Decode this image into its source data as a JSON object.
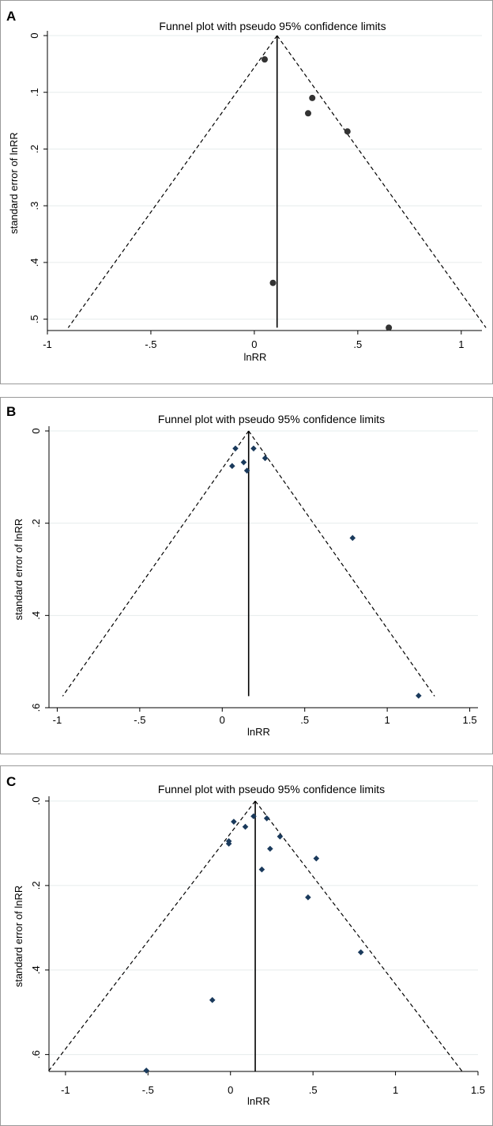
{
  "colors": {
    "panel_bg_a": "#ffffff",
    "panel_bg_bc": "#e9f2f2",
    "gridline": "#e6ecec",
    "circle_marker": "#333333",
    "diamond_marker": "#1a3a5c"
  },
  "chart_data": [
    {
      "type": "scatter",
      "panel_label": "A",
      "title": "Funnel plot with pseudo 95% confidence limits",
      "xlabel": "lnRR",
      "ylabel": "standard error of lnRR",
      "xlim": [
        -1,
        1.1
      ],
      "ylim": [
        0,
        0.52
      ],
      "y_reversed": true,
      "x_ticks": [
        -1,
        -0.5,
        0,
        0.5,
        1
      ],
      "x_tick_labels": [
        "-1",
        "-.5",
        "0",
        ".5",
        "1"
      ],
      "y_ticks": [
        0,
        0.1,
        0.2,
        0.3,
        0.4,
        0.5
      ],
      "y_tick_labels": [
        "0",
        ".1",
        ".2",
        ".3",
        ".4",
        ".5"
      ],
      "marker": "circle",
      "pooled_estimate": 0.11,
      "funnel_max_se": 0.515,
      "points": [
        {
          "x": 0.05,
          "se": 0.042
        },
        {
          "x": 0.28,
          "se": 0.11
        },
        {
          "x": 0.26,
          "se": 0.137
        },
        {
          "x": 0.45,
          "se": 0.169
        },
        {
          "x": 0.09,
          "se": 0.436
        },
        {
          "x": 0.65,
          "se": 0.515
        }
      ]
    },
    {
      "type": "scatter",
      "panel_label": "B",
      "title": "Funnel plot with pseudo 95% confidence limits",
      "xlabel": "lnRR",
      "ylabel": "standard error of lnRR",
      "xlim": [
        -1.05,
        1.55
      ],
      "ylim": [
        0,
        0.6
      ],
      "y_reversed": true,
      "x_ticks": [
        -1,
        -0.5,
        0,
        0.5,
        1,
        1.5
      ],
      "x_tick_labels": [
        "-1",
        "-.5",
        "0",
        ".5",
        "1",
        "1.5"
      ],
      "y_ticks": [
        0,
        0.2,
        0.4,
        0.6
      ],
      "y_tick_labels": [
        "0",
        ".2",
        ".4",
        ".6"
      ],
      "marker": "diamond",
      "pooled_estimate": 0.16,
      "funnel_max_se": 0.575,
      "points": [
        {
          "x": 0.08,
          "se": 0.038
        },
        {
          "x": 0.19,
          "se": 0.038
        },
        {
          "x": 0.26,
          "se": 0.059
        },
        {
          "x": 0.13,
          "se": 0.068
        },
        {
          "x": 0.06,
          "se": 0.076
        },
        {
          "x": 0.15,
          "se": 0.086
        },
        {
          "x": 0.79,
          "se": 0.232
        },
        {
          "x": 1.19,
          "se": 0.574
        }
      ]
    },
    {
      "type": "scatter",
      "panel_label": "C",
      "title": "Funnel plot with pseudo 95% confidence limits",
      "xlabel": "lnRR",
      "ylabel": "standard error of lnRR",
      "xlim": [
        -1.1,
        1.5
      ],
      "ylim": [
        0,
        0.64
      ],
      "y_reversed": true,
      "x_ticks": [
        -1,
        -0.5,
        0,
        0.5,
        1,
        1.5
      ],
      "x_tick_labels": [
        "-1",
        "-.5",
        "0",
        ".5",
        "1",
        "1.5"
      ],
      "y_ticks": [
        0,
        0.2,
        0.4,
        0.6
      ],
      "y_tick_labels": [
        ".0",
        ".2",
        ".4",
        ".6"
      ],
      "marker": "diamond",
      "pooled_estimate": 0.15,
      "funnel_max_se": 0.64,
      "points": [
        {
          "x": 0.14,
          "se": 0.036
        },
        {
          "x": 0.22,
          "se": 0.041
        },
        {
          "x": 0.02,
          "se": 0.049
        },
        {
          "x": 0.09,
          "se": 0.061
        },
        {
          "x": 0.3,
          "se": 0.084
        },
        {
          "x": -0.01,
          "se": 0.095
        },
        {
          "x": -0.01,
          "se": 0.101
        },
        {
          "x": 0.24,
          "se": 0.113
        },
        {
          "x": 0.52,
          "se": 0.136
        },
        {
          "x": 0.19,
          "se": 0.162
        },
        {
          "x": 0.47,
          "se": 0.228
        },
        {
          "x": 0.79,
          "se": 0.358
        },
        {
          "x": -0.11,
          "se": 0.471
        },
        {
          "x": -0.51,
          "se": 0.638
        }
      ]
    }
  ]
}
